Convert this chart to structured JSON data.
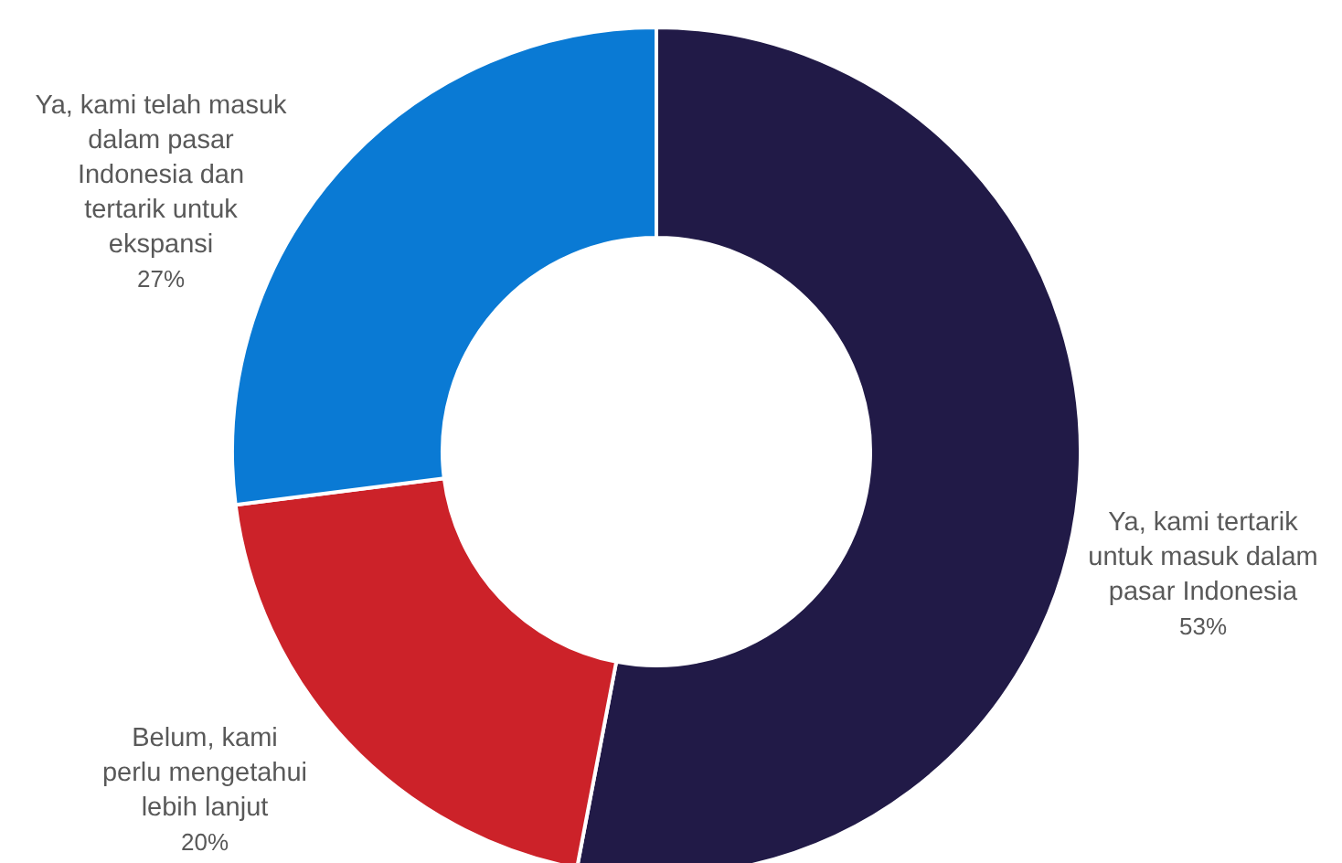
{
  "chart_data": {
    "type": "donut",
    "categories": [
      "Ya, kami tertarik untuk masuk dalam pasar Indonesia",
      "Belum, kami perlu mengetahui lebih lanjut",
      "Ya, kami telah masuk dalam pasar Indonesia dan tertarik untuk ekspansi"
    ],
    "values": [
      53,
      20,
      27
    ],
    "colors": [
      "#211a47",
      "#cc2229",
      "#0a7ad4"
    ],
    "value_labels": [
      "53%",
      "20%",
      "27%"
    ],
    "legend": false
  }
}
